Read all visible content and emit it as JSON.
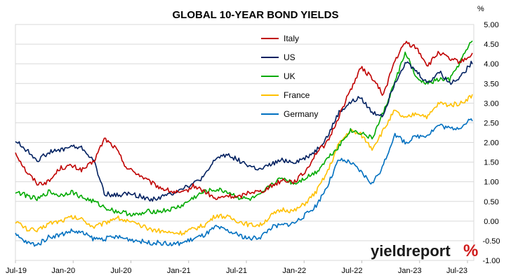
{
  "chart_data": {
    "type": "line",
    "title": "GLOBAL 10-YEAR BOND YIELDS",
    "y_unit": "%",
    "ylim": [
      -1.0,
      5.0
    ],
    "y_ticks": [
      "5.00",
      "4.50",
      "4.00",
      "3.50",
      "3.00",
      "2.50",
      "2.00",
      "1.50",
      "1.00",
      "0.50",
      "0.00",
      "-0.50",
      "-1.00"
    ],
    "x_ticks": [
      "Jul-19",
      "Jan-20",
      "Jul-20",
      "Jan-21",
      "Jul-21",
      "Jan-22",
      "Jul-22",
      "Jan-23",
      "Jul-23"
    ],
    "grid": "horizontal",
    "legend_position": "top-center",
    "series": [
      {
        "name": "Italy",
        "color": "#c00000",
        "values": [
          1.75,
          1.25,
          0.95,
          1.0,
          1.35,
          1.4,
          1.3,
          1.5,
          2.1,
          1.85,
          1.35,
          1.2,
          1.0,
          0.85,
          0.75,
          0.7,
          0.9,
          0.75,
          0.55,
          0.65,
          0.6,
          0.75,
          0.75,
          0.9,
          1.05,
          1.0,
          1.25,
          1.75,
          2.0,
          2.65,
          3.3,
          3.9,
          3.65,
          3.2,
          4.05,
          4.55,
          4.4,
          3.95,
          4.3,
          4.1,
          4.05,
          4.25
        ]
      },
      {
        "name": "US",
        "color": "#002060",
        "values": [
          2.05,
          1.8,
          1.55,
          1.75,
          1.8,
          1.9,
          1.85,
          1.55,
          0.7,
          0.65,
          0.7,
          0.65,
          0.55,
          0.6,
          0.7,
          0.85,
          0.95,
          1.15,
          1.6,
          1.7,
          1.55,
          1.4,
          1.3,
          1.45,
          1.55,
          1.5,
          1.6,
          1.8,
          2.15,
          2.75,
          3.0,
          3.15,
          2.75,
          2.7,
          3.5,
          4.05,
          3.8,
          3.5,
          3.8,
          3.5,
          3.7,
          4.05
        ]
      },
      {
        "name": "UK",
        "color": "#00aa00",
        "values": [
          0.75,
          0.65,
          0.55,
          0.75,
          0.65,
          0.75,
          0.6,
          0.5,
          0.35,
          0.25,
          0.2,
          0.15,
          0.25,
          0.25,
          0.3,
          0.4,
          0.6,
          0.75,
          0.8,
          0.75,
          0.6,
          0.55,
          0.65,
          0.95,
          1.1,
          0.95,
          1.1,
          1.25,
          1.6,
          1.9,
          2.3,
          2.25,
          2.1,
          2.75,
          3.5,
          4.3,
          3.6,
          3.5,
          3.6,
          3.6,
          4.1,
          4.6
        ]
      },
      {
        "name": "France",
        "color": "#ffc000",
        "values": [
          0.0,
          -0.2,
          -0.25,
          -0.05,
          0.0,
          0.1,
          0.05,
          -0.15,
          -0.05,
          0.1,
          0.0,
          -0.1,
          -0.2,
          -0.25,
          -0.3,
          -0.3,
          -0.2,
          -0.1,
          0.15,
          0.1,
          0.0,
          -0.1,
          -0.1,
          0.15,
          0.3,
          0.25,
          0.45,
          0.75,
          1.25,
          1.95,
          2.3,
          2.2,
          1.85,
          2.3,
          2.8,
          2.6,
          2.75,
          2.65,
          3.0,
          2.95,
          3.0,
          3.2
        ]
      },
      {
        "name": "Germany",
        "color": "#0070c0",
        "values": [
          -0.35,
          -0.55,
          -0.6,
          -0.4,
          -0.35,
          -0.25,
          -0.3,
          -0.45,
          -0.45,
          -0.4,
          -0.45,
          -0.5,
          -0.55,
          -0.55,
          -0.6,
          -0.55,
          -0.45,
          -0.35,
          -0.15,
          -0.25,
          -0.35,
          -0.45,
          -0.4,
          -0.15,
          -0.1,
          -0.05,
          0.15,
          0.4,
          0.9,
          1.55,
          1.5,
          1.25,
          0.95,
          1.4,
          2.2,
          2.0,
          2.15,
          2.2,
          2.45,
          2.35,
          2.4,
          2.6
        ]
      }
    ]
  },
  "logo": {
    "main": "yieldreport",
    "symbol": "%"
  }
}
